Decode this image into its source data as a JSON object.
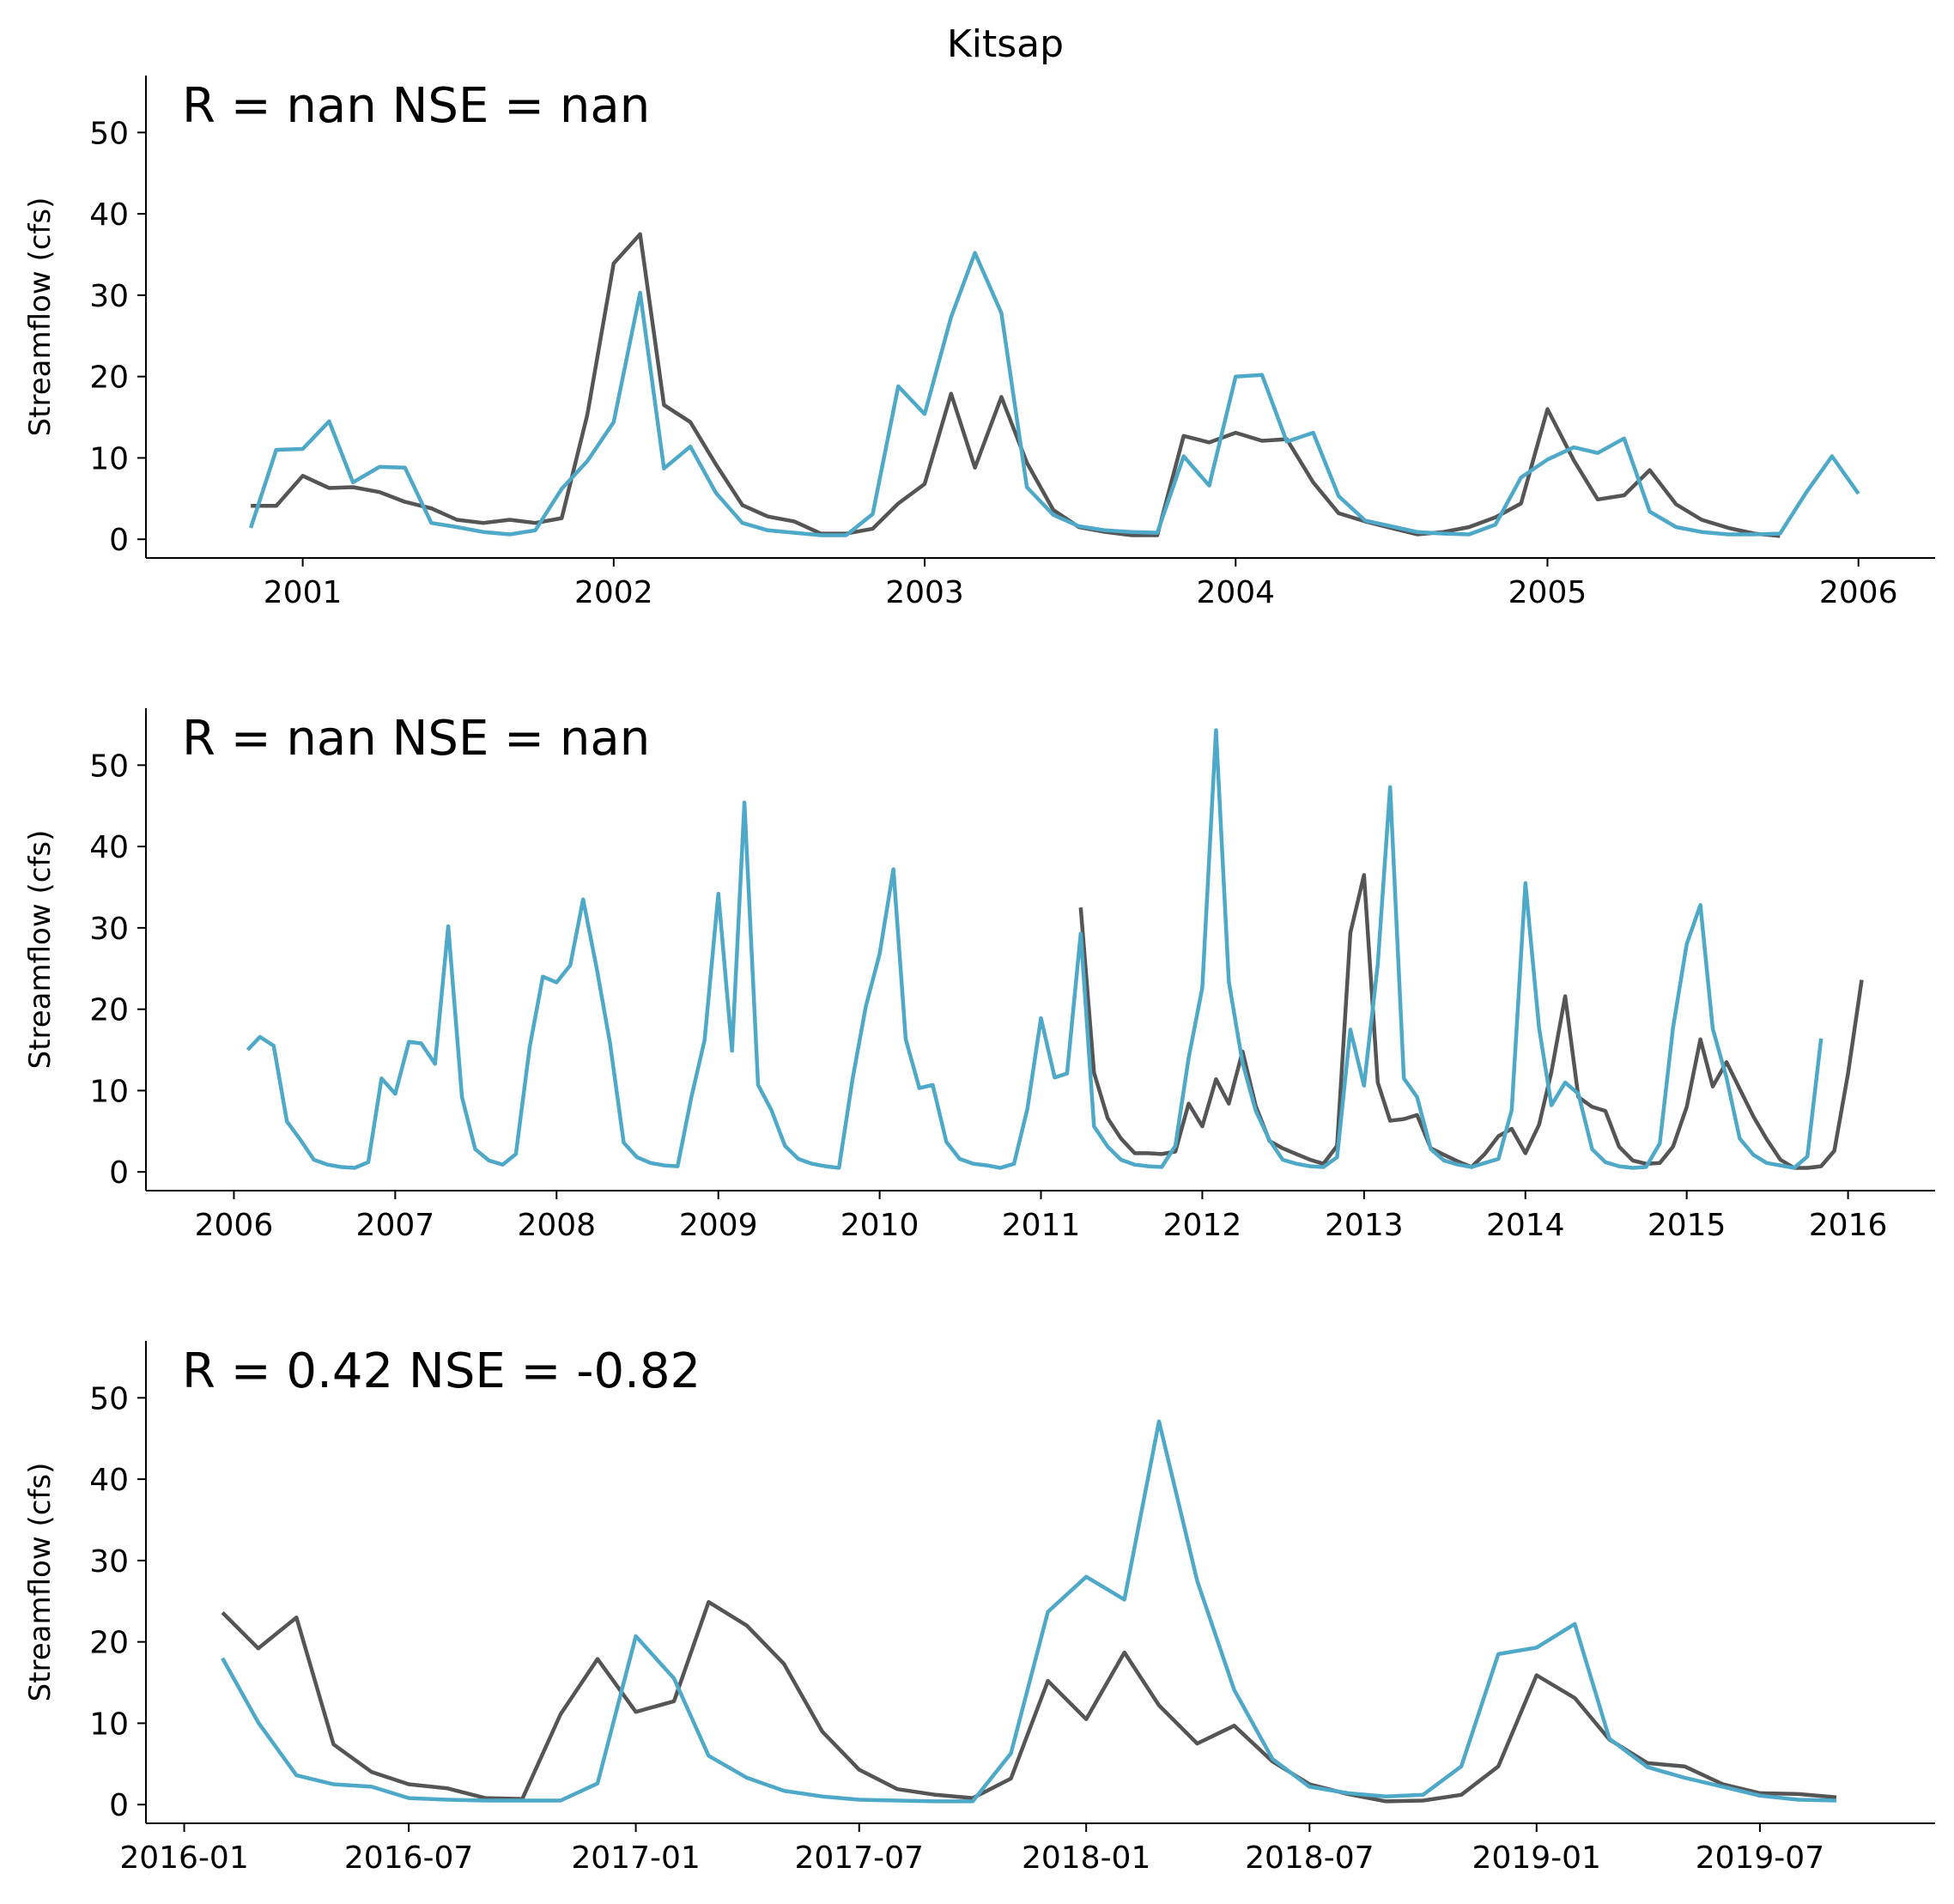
{
  "figure": {
    "title": "Kitsap"
  },
  "colors": {
    "observed": "#555555",
    "simulated": "#4EA9C9",
    "axis": "#000000"
  },
  "chart_data": [
    {
      "type": "line",
      "title": "",
      "stats_text": "R = nan  NSE = nan",
      "ylabel": "Streamflow (cfs)",
      "xlabel": "",
      "ylim": [
        -2.3,
        57
      ],
      "yticks": [
        0,
        10,
        20,
        30,
        40,
        50
      ],
      "xlim": [
        "2000-07-01",
        "2006-04-01"
      ],
      "xticks": [
        "2001",
        "2002",
        "2003",
        "2004",
        "2005",
        "2006"
      ],
      "grid": false,
      "series": [
        {
          "role": "observed",
          "x_start": "2000-11",
          "values": [
            4.1,
            4.1,
            7.8,
            6.3,
            6.4,
            5.8,
            4.6,
            3.8,
            2.4,
            2.0,
            2.4,
            2.0,
            2.6,
            15.3,
            33.9,
            37.5,
            16.5,
            14.4,
            9.2,
            4.2,
            2.8,
            2.2,
            0.7,
            0.7,
            1.3,
            4.4,
            6.8,
            17.9,
            8.8,
            17.5,
            9.4,
            3.6,
            1.5,
            0.9,
            0.5,
            0.5,
            12.7,
            11.9,
            13.1,
            12.1,
            12.3,
            7.0,
            3.2,
            2.2,
            1.4,
            0.6,
            0.9,
            1.5,
            2.7,
            4.4,
            16.0,
            9.7,
            4.9,
            5.4,
            8.5,
            4.3,
            2.4,
            1.4,
            0.7,
            0.4
          ]
        },
        {
          "role": "simulated",
          "x_start": "2000-11",
          "values": [
            1.4,
            11.0,
            11.1,
            14.5,
            7.0,
            8.9,
            8.8,
            2.0,
            1.5,
            0.9,
            0.6,
            1.1,
            6.2,
            9.6,
            14.4,
            30.3,
            8.7,
            11.4,
            5.7,
            2.0,
            1.1,
            0.8,
            0.5,
            0.5,
            3.1,
            18.8,
            15.4,
            27.3,
            35.2,
            27.8,
            6.4,
            3.0,
            1.6,
            1.1,
            0.9,
            0.8,
            10.2,
            6.6,
            20.0,
            20.2,
            12.0,
            13.1,
            5.3,
            2.3,
            1.6,
            0.9,
            0.7,
            0.6,
            1.8,
            7.6,
            9.8,
            11.3,
            10.6,
            12.4,
            3.4,
            1.5,
            0.9,
            0.6,
            0.6,
            0.7,
            5.8,
            10.2,
            5.6
          ]
        }
      ]
    },
    {
      "type": "line",
      "title": "",
      "stats_text": "R = nan  NSE = nan",
      "ylabel": "Streamflow (cfs)",
      "xlabel": "",
      "ylim": [
        -2.3,
        57
      ],
      "yticks": [
        0,
        10,
        20,
        30,
        40,
        50
      ],
      "xlim": [
        "2005-06-16",
        "2016-07-16"
      ],
      "xticks": [
        "2006",
        "2007",
        "2008",
        "2009",
        "2010",
        "2011",
        "2012",
        "2013",
        "2014",
        "2015",
        "2016"
      ],
      "grid": false,
      "series": [
        {
          "role": "observed",
          "x_start": "2011-04",
          "values": [
            32.5,
            12.2,
            6.6,
            4.1,
            2.3,
            2.3,
            2.2,
            2.5,
            8.4,
            5.6,
            11.4,
            8.4,
            14.8,
            8.1,
            3.8,
            2.9,
            2.2,
            1.5,
            1.0,
            3.2,
            29.4,
            36.5,
            11.0,
            6.3,
            6.5,
            7.0,
            2.9,
            2.1,
            1.3,
            0.6,
            2.2,
            4.4,
            5.3,
            2.3,
            5.8,
            12.3,
            21.6,
            9.2,
            8.0,
            7.5,
            3.1,
            1.4,
            1.0,
            1.1,
            3.1,
            8.0,
            16.3,
            10.5,
            13.5,
            10.2,
            6.8,
            4.0,
            1.5,
            0.5,
            0.5,
            0.7,
            2.6,
            12.1,
            23.6
          ]
        },
        {
          "role": "simulated",
          "x_start": "2006-02",
          "values": [
            15.0,
            16.6,
            15.5,
            6.2,
            3.9,
            1.5,
            0.9,
            0.6,
            0.5,
            1.2,
            11.5,
            9.6,
            16.0,
            15.8,
            13.3,
            30.2,
            9.2,
            2.8,
            1.4,
            0.9,
            2.2,
            15.3,
            24.0,
            23.3,
            25.4,
            33.5,
            25.0,
            15.8,
            3.6,
            1.8,
            1.1,
            0.8,
            0.7,
            9.2,
            16.2,
            34.2,
            14.9,
            45.4,
            10.7,
            7.6,
            3.2,
            1.6,
            1.0,
            0.7,
            0.5,
            11.5,
            20.4,
            26.8,
            37.2,
            16.3,
            10.3,
            10.7,
            3.7,
            1.6,
            1.0,
            0.8,
            0.5,
            1.0,
            7.7,
            18.9,
            11.6,
            12.1,
            29.3,
            5.6,
            3.1,
            1.5,
            0.9,
            0.7,
            0.6,
            3.2,
            14.0,
            22.6,
            54.3,
            23.4,
            13.4,
            7.5,
            3.9,
            1.5,
            1.0,
            0.7,
            0.6,
            1.8,
            17.5,
            10.6,
            25.5,
            47.3,
            11.5,
            9.2,
            2.8,
            1.4,
            0.9,
            0.6,
            1.1,
            1.6,
            7.6,
            35.5,
            17.7,
            8.2,
            11.0,
            9.6,
            2.8,
            1.2,
            0.7,
            0.5,
            0.6,
            3.5,
            17.7,
            28.0,
            32.8,
            17.6,
            11.6,
            4.1,
            2.1,
            1.1,
            0.8,
            0.5,
            1.9,
            16.4
          ]
        }
      ]
    },
    {
      "type": "line",
      "title": "",
      "stats_text": "R = 0.42  NSE = -0.82",
      "ylabel": "Streamflow (cfs)",
      "xlabel": "",
      "ylim": [
        -2.3,
        57
      ],
      "yticks": [
        0,
        10,
        20,
        30,
        40,
        50
      ],
      "xlim": [
        "2015-12-01",
        "2019-11-20"
      ],
      "xticks": [
        "2016-01",
        "2016-07",
        "2017-01",
        "2017-07",
        "2018-01",
        "2018-07",
        "2019-01",
        "2019-07"
      ],
      "grid": false,
      "series": [
        {
          "role": "observed",
          "x_start": "2016-02",
          "values": [
            23.6,
            19.2,
            23.0,
            7.4,
            4.0,
            2.5,
            2.0,
            0.8,
            0.7,
            11.1,
            17.9,
            11.4,
            12.7,
            24.9,
            22.0,
            17.3,
            9.0,
            4.3,
            1.9,
            1.2,
            0.8,
            3.2,
            15.2,
            10.5,
            18.7,
            12.2,
            7.5,
            9.7,
            5.3,
            2.5,
            1.3,
            0.4,
            0.5,
            1.2,
            4.7,
            15.9,
            13.1,
            8.0,
            5.1,
            4.7,
            2.5,
            1.4,
            1.3,
            0.9
          ]
        },
        {
          "role": "simulated",
          "x_start": "2016-02",
          "values": [
            18.0,
            10.1,
            3.6,
            2.5,
            2.2,
            0.8,
            0.6,
            0.5,
            0.5,
            0.5,
            2.6,
            20.7,
            15.5,
            6.0,
            3.3,
            1.7,
            1.0,
            0.6,
            0.5,
            0.4,
            0.4,
            6.3,
            23.7,
            28.0,
            25.2,
            47.1,
            27.5,
            14.1,
            5.6,
            2.2,
            1.4,
            1.0,
            1.2,
            4.7,
            18.5,
            19.3,
            22.2,
            8.1,
            4.6,
            3.3,
            2.2,
            1.1,
            0.6,
            0.5
          ]
        }
      ]
    }
  ]
}
